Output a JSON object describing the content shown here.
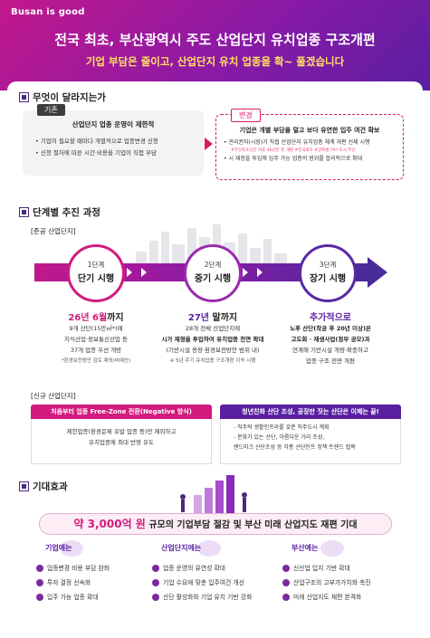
{
  "header": {
    "logo": "Busan is good",
    "title": "전국 최초, 부산광역시 주도 산업단지 유치업종 구조개편",
    "subtitle": "기업 부담은 줄이고, 산업단지 유치 업종을 확~ 풀겠습니다"
  },
  "section1": {
    "heading": "무엇이 달라지는가",
    "old": {
      "tag": "기존",
      "lead": "산업단지 업종 운영이 제한적",
      "items": [
        "• 기업이 필요할 때마다 개별적으로 업종변경 신청",
        "• 신청 절차에 따른 시간·비용을 기업이 직접 부담"
      ]
    },
    "new": {
      "tag": "변경",
      "lead": "기업은 개별 부담을 덜고 보다 유연한 입주 여건 확보",
      "item1": "• 관리권자(시장)가 직접 산업단지 유치업종 체계 개편 선제 시행",
      "item1_note": "#부산최초산단 이후 46년만 첫 개편 #전국최초 #글로벌 허브 도시 부산",
      "item2": "• 시 재정을 투입해 입주 가능 업종의 범위를 합리적으로 확대"
    }
  },
  "section2": {
    "heading": "단계별 추진 과정",
    "existing_label": "[준공 산업단지]",
    "stages": [
      {
        "step": "1단계",
        "name": "단기 시행",
        "deadline_a": "26년 6월",
        "deadline_b": "까지",
        "lines": [
          "9개 산단(15만㎡*)에",
          "지식산업·정보통신산업 등",
          "37개 업종 우선 개방"
        ],
        "note": "*환경보전방안 검토 제외(비예산)"
      },
      {
        "step": "2단계",
        "name": "중기 시행",
        "deadline_a": "27년",
        "deadline_b": " 말까지",
        "lines": [
          "28개 전체 산업단지에",
          "시가 재정을 투입하여 유치업종 전면 확대",
          "(기반시설 용량·환경보전방안 범위 내)"
        ],
        "note": "※ 5년 주기 유치업종 구조개편 지속 시행"
      },
      {
        "step": "3단계",
        "name": "장기 시행",
        "deadline_a": "추가적으로",
        "deadline_b": "",
        "lines": [
          "노후 산단(착공 후 20년 이상)은",
          "고도화 · 재생사업(정부 공모)과",
          "연계해 기반시설 개량·확충하고",
          "업종 구조 전면 개편"
        ],
        "note": ""
      }
    ],
    "new_label": "[신규 산업단지]",
    "new_left": {
      "title": "처음부터 업종 Free-Zone 전환(Negative 방식)",
      "lines": [
        "제한업종(환경문제 유발 업종 등)만 제외하고",
        "유치업종에 최대 반영 유도"
      ]
    },
    "new_right": {
      "title": "청년친화 산단 조성, 공장만 짓는 산단은 이제는 끝!",
      "lines": [
        "- 직주락 생활인프라를 갖춘 직주도시 계획",
        "- 문화가 있는 산단, 아름다운 거리 조성,",
        "  랜드마크 산단조성 등 각종 산단인프 정책 트렌드 접목"
      ]
    }
  },
  "section3": {
    "heading": "기대효과",
    "amount_value": "약 3,000억 원",
    "amount_text": " 규모의 기업부담 절감 및 부산 미래 산업지도 재편 기대",
    "columns": [
      {
        "who": "기업에는",
        "items": [
          "업종변경 비용 부담 완화",
          "투자 결정 신속화",
          "입주 가능 업종 확대"
        ]
      },
      {
        "who": "산업단지에는",
        "items": [
          "업종 운영의 유연성 확대",
          "기업 수요에 맞춘 입주여건 개선",
          "산단 활성화와 기업 유치 기반 강화"
        ]
      },
      {
        "who": "부산에는",
        "items": [
          "신산업 입지 기반 확대",
          "산업구조의 고부가가치화 촉진",
          "미래 산업지도 재편 본격화"
        ]
      }
    ]
  },
  "colors": {
    "magenta": "#d11b7e",
    "purple": "#5a1fa0",
    "yellow": "#ffe066"
  }
}
